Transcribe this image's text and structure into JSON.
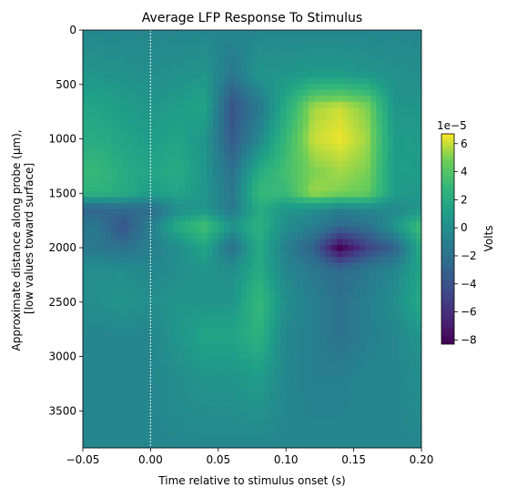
{
  "chart_data": {
    "type": "heatmap",
    "title": "Average LFP Response To Stimulus",
    "xlabel": "Time relative to stimulus onset (s)",
    "ylabel_lines": [
      "Approximate distance along probe (µm),",
      "[low values toward surface]"
    ],
    "xlim": [
      -0.05,
      0.2
    ],
    "ylim": [
      0,
      3840
    ],
    "y_inverted": true,
    "xticks": [
      -0.05,
      0.0,
      0.05,
      0.1,
      0.15,
      0.2
    ],
    "xtick_labels": [
      "−0.05",
      "0.00",
      "0.05",
      "0.10",
      "0.15",
      "0.20"
    ],
    "yticks": [
      0,
      500,
      1000,
      1500,
      2000,
      2500,
      3000,
      3500
    ],
    "ytick_labels": [
      "0",
      "500",
      "1000",
      "1500",
      "2000",
      "2500",
      "3000",
      "3500"
    ],
    "colormap": "viridis",
    "colorbar": {
      "label": "Volts",
      "offset_text": "1e−5",
      "range": [
        -8.3,
        6.7
      ],
      "ticks": [
        -8,
        -6,
        -4,
        -2,
        0,
        2,
        4,
        6
      ],
      "tick_labels": [
        "−8",
        "−6",
        "−4",
        "−2",
        "0",
        "2",
        "4",
        "6"
      ]
    },
    "stimulus_onset_line": {
      "x": 0.0,
      "style": "dotted",
      "color": "#ffffff"
    },
    "grid": false,
    "value_units": "1e-5 V",
    "time_bins": [
      -0.04,
      -0.02,
      0.0,
      0.02,
      0.04,
      0.06,
      0.08,
      0.1,
      0.12,
      0.14,
      0.16,
      0.18,
      0.2
    ],
    "depth_bins": [
      0,
      400,
      700,
      1000,
      1300,
      1500,
      1650,
      1800,
      2000,
      2200,
      2500,
      2800,
      3200,
      3840
    ],
    "values": [
      [
        -0.5,
        -0.5,
        -0.5,
        -0.5,
        -0.5,
        -0.5,
        -0.5,
        -0.5,
        -0.5,
        -0.5,
        -0.5,
        -0.5,
        -0.5
      ],
      [
        0.5,
        0.3,
        0.0,
        0.2,
        0.5,
        -1.5,
        0.5,
        0.5,
        0.8,
        0.8,
        0.5,
        0.2,
        0.0
      ],
      [
        1.5,
        1.0,
        0.5,
        1.0,
        1.5,
        -4.0,
        -1.5,
        2.0,
        5.5,
        6.0,
        5.0,
        0.5,
        0.5
      ],
      [
        2.0,
        1.5,
        1.0,
        1.5,
        0.5,
        -3.5,
        -0.5,
        3.0,
        6.0,
        6.5,
        5.5,
        1.0,
        0.8
      ],
      [
        3.0,
        2.0,
        1.5,
        2.0,
        0.5,
        -2.0,
        2.0,
        3.5,
        5.0,
        5.5,
        5.0,
        1.0,
        1.0
      ],
      [
        2.5,
        2.0,
        1.0,
        1.5,
        0.5,
        -1.5,
        3.0,
        3.0,
        5.5,
        5.0,
        4.5,
        1.0,
        0.5
      ],
      [
        -3.0,
        -2.5,
        -2.5,
        0.0,
        0.5,
        -1.5,
        2.0,
        0.5,
        0.0,
        -1.0,
        -0.5,
        -0.5,
        0.5
      ],
      [
        -1.5,
        -4.0,
        -1.0,
        2.0,
        3.5,
        0.5,
        2.5,
        0.0,
        -1.0,
        -2.5,
        -2.0,
        0.5,
        3.5
      ],
      [
        -1.5,
        -2.0,
        -1.0,
        0.0,
        1.5,
        -2.0,
        2.0,
        -1.0,
        -3.0,
        -8.3,
        -5.0,
        -3.0,
        2.0
      ],
      [
        0.0,
        0.0,
        -0.5,
        0.0,
        0.5,
        0.0,
        2.0,
        -0.5,
        -1.5,
        -2.5,
        -1.5,
        -0.5,
        1.5
      ],
      [
        0.0,
        0.5,
        0.0,
        0.5,
        0.5,
        0.5,
        3.0,
        0.0,
        -1.0,
        -2.0,
        -1.0,
        0.0,
        2.0
      ],
      [
        -0.5,
        -0.5,
        -0.5,
        0.5,
        1.5,
        1.5,
        2.5,
        -0.5,
        -1.0,
        -2.0,
        -1.0,
        -0.5,
        0.5
      ],
      [
        -0.5,
        -0.5,
        -0.5,
        0.0,
        0.5,
        0.5,
        1.0,
        -0.5,
        -1.0,
        -1.0,
        -0.5,
        -0.5,
        0.0
      ],
      [
        -0.5,
        -0.5,
        -0.5,
        -0.5,
        -0.5,
        -0.5,
        -0.5,
        -0.5,
        -0.5,
        -0.5,
        -0.5,
        -0.5,
        -0.5
      ]
    ]
  }
}
